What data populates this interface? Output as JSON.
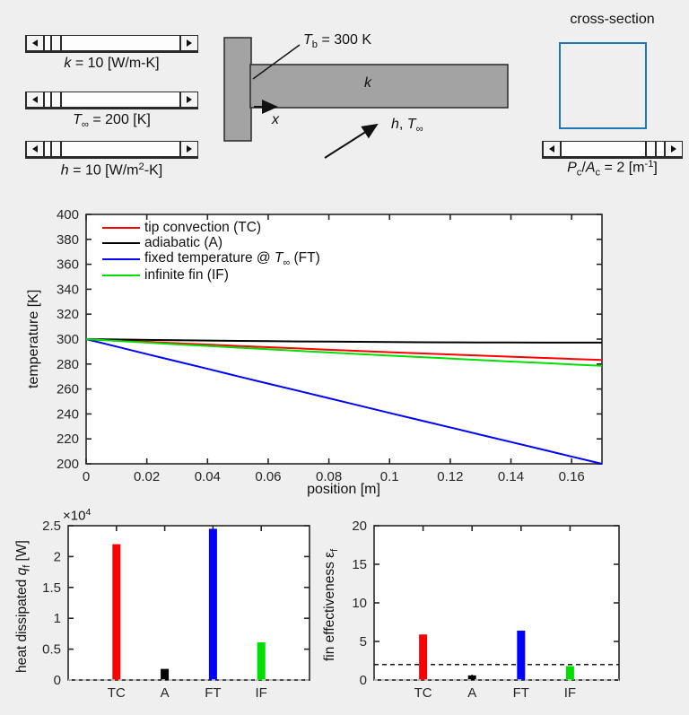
{
  "window": {
    "background": "#efefef",
    "plot_background": "#ffffff",
    "axis_color": "#262626"
  },
  "controls": {
    "k_slider": {
      "text": "k = 10 [W/m-K]",
      "thumb_pos": "4%",
      "label_rich": [
        {
          "t": "k",
          "s": "i"
        },
        {
          "t": " = 10 [W/m-K]"
        }
      ]
    },
    "t_slider": {
      "text": "T∞ = 200 [K]",
      "thumb_pos": "4%",
      "label_rich": [
        {
          "t": "T",
          "s": "i"
        },
        {
          "t": "∞",
          "s": "sub"
        },
        {
          "t": " = 200 [K]"
        }
      ]
    },
    "h_slider": {
      "text": "h = 10 [W/m²-K]",
      "thumb_pos": "4%",
      "label_rich": [
        {
          "t": "h",
          "s": "i"
        },
        {
          "t": " = 10 [W/m"
        },
        {
          "t": "2",
          "s": "sup"
        },
        {
          "t": "-K]"
        }
      ]
    },
    "pa_slider": {
      "text": "Pc/Ac = 2 [m⁻¹]",
      "thumb_pos": "82%",
      "label_rich": [
        {
          "t": "P",
          "s": "i"
        },
        {
          "t": "c",
          "s": "sub"
        },
        {
          "t": "/"
        },
        {
          "t": "A",
          "s": "i"
        },
        {
          "t": "c",
          "s": "sub"
        },
        {
          "t": " = 2 [m"
        },
        {
          "t": "-1",
          "s": "sup"
        },
        {
          "t": "]"
        }
      ]
    }
  },
  "diagram": {
    "fill": "#a3a3a3",
    "tb_label_rich": [
      {
        "t": "T",
        "s": "i"
      },
      {
        "t": "b",
        "s": "sub"
      },
      {
        "t": " = 300 K"
      }
    ],
    "k_label_rich": [
      {
        "t": "k",
        "s": "i"
      }
    ],
    "x_label_rich": [
      {
        "t": "x",
        "s": "i"
      }
    ],
    "ht_label_rich": [
      {
        "t": "h",
        "s": "i"
      },
      {
        "t": ", "
      },
      {
        "t": "T",
        "s": "i"
      },
      {
        "t": "∞",
        "s": "sub"
      }
    ]
  },
  "cross_section": {
    "title": "cross-section",
    "border_color": "#1f77b4"
  },
  "chart_data": [
    {
      "id": "temperature-profile",
      "type": "line",
      "xlabel": "position [m]",
      "ylabel": "temperature [K]",
      "xlim": [
        0,
        0.17
      ],
      "ylim": [
        200,
        400
      ],
      "grid": false,
      "legend_position": "top-left",
      "xticks": [
        0,
        0.02,
        0.04,
        0.06,
        0.08,
        0.1,
        0.12,
        0.14,
        0.16
      ],
      "xtick_labels": [
        "0",
        "0.02",
        "0.04",
        "0.06",
        "0.08",
        "0.1",
        "0.12",
        "0.14",
        "0.16"
      ],
      "yticks": [
        200,
        220,
        240,
        260,
        280,
        300,
        320,
        340,
        360,
        380,
        400
      ],
      "ytick_labels": [
        "200",
        "220",
        "240",
        "260",
        "280",
        "300",
        "320",
        "340",
        "360",
        "380",
        "400"
      ],
      "x": [
        0,
        0.01,
        0.02,
        0.03,
        0.04,
        0.05,
        0.06,
        0.07,
        0.08,
        0.09,
        0.1,
        0.11,
        0.12,
        0.13,
        0.14,
        0.15,
        0.16,
        0.17
      ],
      "series": [
        {
          "name": "tip convection (TC)",
          "color": "#ff0000",
          "label_rich": [
            {
              "t": "tip convection (TC)"
            }
          ],
          "values": [
            300,
            298.9,
            297.8,
            296.7,
            295.6,
            294.5,
            293.5,
            292.5,
            291.5,
            290.5,
            289.5,
            288.6,
            287.7,
            286.8,
            285.9,
            285.0,
            284.1,
            283.3
          ]
        },
        {
          "name": "adiabatic (A)",
          "color": "#000000",
          "label_rich": [
            {
              "t": "adiabatic (A)"
            }
          ],
          "values": [
            300,
            299.7,
            299.4,
            299.1,
            298.8,
            298.6,
            298.4,
            298.1,
            298.0,
            297.8,
            297.7,
            297.5,
            297.4,
            297.3,
            297.3,
            297.2,
            297.2,
            297.2
          ]
        },
        {
          "name": "fixed temperature @ T∞ (FT)",
          "color": "#0000ff",
          "label_rich": [
            {
              "t": "fixed temperature @ "
            },
            {
              "t": "T",
              "s": "i"
            },
            {
              "t": "∞",
              "s": "sub"
            },
            {
              "t": " (FT)"
            }
          ],
          "values": [
            300,
            294.0,
            288.0,
            282.1,
            276.2,
            270.2,
            264.3,
            258.5,
            252.6,
            246.7,
            240.8,
            235.0,
            229.2,
            223.3,
            217.5,
            211.7,
            205.8,
            200
          ]
        },
        {
          "name": "infinite fin (IF)",
          "color": "#00dd00",
          "label_rich": [
            {
              "t": "infinite fin (IF)"
            }
          ],
          "values": [
            300,
            298.6,
            297.2,
            295.8,
            294.5,
            293.2,
            291.9,
            290.6,
            289.3,
            288.0,
            286.8,
            285.6,
            284.4,
            283.2,
            282.0,
            280.9,
            279.7,
            278.6
          ]
        }
      ]
    },
    {
      "id": "heat-dissipated",
      "type": "bar",
      "ylabel": "heat dissipated qf [W]",
      "ylabel_rich": [
        {
          "t": "heat dissipated "
        },
        {
          "t": "q",
          "s": "i"
        },
        {
          "t": "f",
          "s": "sub"
        },
        {
          "t": " [W]"
        }
      ],
      "exponent_text": "×10⁴",
      "exponent_rich": [
        {
          "t": "×10"
        },
        {
          "t": "4",
          "s": "sup"
        }
      ],
      "categories": [
        "TC",
        "A",
        "FT",
        "IF"
      ],
      "values": [
        2.2,
        0.18,
        2.45,
        0.61
      ],
      "colors": [
        "#ff0000",
        "#000000",
        "#0000ff",
        "#00dd00"
      ],
      "xlim": [
        0,
        1
      ],
      "ylim": [
        0,
        2.5
      ],
      "yticks": [
        0,
        0.5,
        1,
        1.5,
        2,
        2.5
      ],
      "ytick_labels": [
        "0",
        "0.5",
        "1",
        "1.5",
        "2",
        "2.5"
      ],
      "zero_dash": true,
      "dashed_line_y": null
    },
    {
      "id": "fin-effectiveness",
      "type": "bar",
      "ylabel": "fin effectiveness εf",
      "ylabel_rich": [
        {
          "t": "fin effectiveness "
        },
        {
          "t": "ε"
        },
        {
          "t": "f",
          "s": "sub"
        }
      ],
      "categories": [
        "TC",
        "A",
        "FT",
        "IF"
      ],
      "values": [
        5.9,
        0.6,
        6.4,
        1.8
      ],
      "colors": [
        "#ff0000",
        "#000000",
        "#0000ff",
        "#00dd00"
      ],
      "xlim": [
        0,
        1
      ],
      "ylim": [
        0,
        20
      ],
      "yticks": [
        0,
        5,
        10,
        15,
        20
      ],
      "ytick_labels": [
        "0",
        "5",
        "10",
        "15",
        "20"
      ],
      "zero_dash": true,
      "dashed_line_y": 2
    }
  ]
}
